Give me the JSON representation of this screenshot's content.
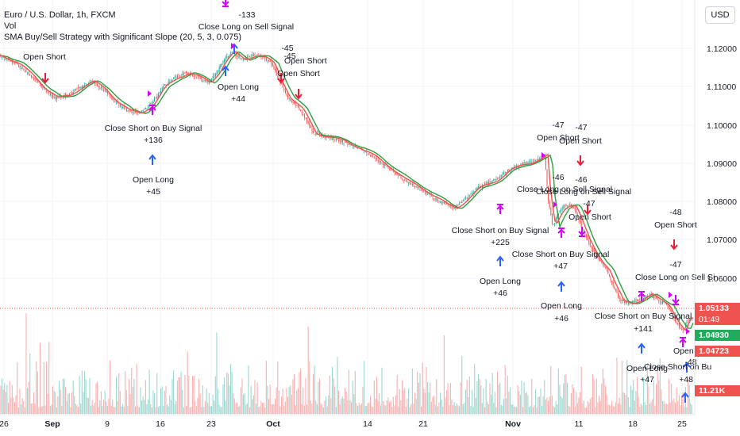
{
  "header": {
    "symbol": "Euro / U.S. Dollar, 1h, FXCM",
    "vol": "Vol",
    "strategy": "SMA Buy/Sell Strategy with Significant Slope (20, 5, 3, 0.075)"
  },
  "currency_button": "USD",
  "y_axis": {
    "ticks": [
      "1.12000",
      "1.11000",
      "1.10000",
      "1.09000",
      "1.08000",
      "1.07000",
      "1.06000"
    ]
  },
  "x_axis": {
    "ticks": [
      "26",
      "Sep",
      "9",
      "16",
      "23",
      "Oct",
      "14",
      "21",
      "Nov",
      "11",
      "18",
      "25"
    ]
  },
  "price_tags": {
    "current": "1.05133",
    "countdown": "01:49",
    "bid": "1.04930",
    "ask": "1.04723",
    "volume": "11.21K"
  },
  "colors": {
    "bullish": "#26a69a",
    "bearish": "#ef5350",
    "sma_fast": "#ef5350",
    "sma_slow": "#2e9e3e",
    "long_arrow": "#2962ff",
    "short_arrow": "#e91e3c",
    "close_marker": "#d500f9"
  },
  "annotations": [
    {
      "text": "Open Short"
    },
    {
      "text": "-133"
    },
    {
      "text": "Close Long on Sell Signal"
    },
    {
      "text": "-45"
    },
    {
      "text": "Open Short"
    },
    {
      "text": "-45"
    },
    {
      "text": "Open Short"
    },
    {
      "text": "Open Long"
    },
    {
      "text": "+44"
    },
    {
      "text": "Close Short on Buy Signal"
    },
    {
      "text": "+136"
    },
    {
      "text": "Open Long"
    },
    {
      "text": "+45"
    },
    {
      "text": "-47"
    },
    {
      "text": "-47"
    },
    {
      "text": "Open Short"
    },
    {
      "text": "Open Short"
    },
    {
      "text": "-46"
    },
    {
      "text": "-46"
    },
    {
      "text": "Close Long on Sell Signal"
    },
    {
      "text": "Close Long on Sell Signal"
    },
    {
      "text": "-47"
    },
    {
      "text": "Open Short"
    },
    {
      "text": "Close Short on Buy Signal"
    },
    {
      "text": "+225"
    },
    {
      "text": "Open Long"
    },
    {
      "text": "+46"
    },
    {
      "text": "Close Short on Buy Signal"
    },
    {
      "text": "+47"
    },
    {
      "text": "Open Long"
    },
    {
      "text": "+46"
    },
    {
      "text": "-48"
    },
    {
      "text": "Open Short"
    },
    {
      "text": "-47"
    },
    {
      "text": "Close Long on Sell Si"
    },
    {
      "text": "Close Short on Buy Signal"
    },
    {
      "text": "+141"
    },
    {
      "text": "Open Lon"
    },
    {
      "text": "-48"
    },
    {
      "text": "Open Long"
    },
    {
      "text": "+47"
    },
    {
      "text": "Close Short on Bu"
    },
    {
      "text": "+48"
    }
  ]
}
